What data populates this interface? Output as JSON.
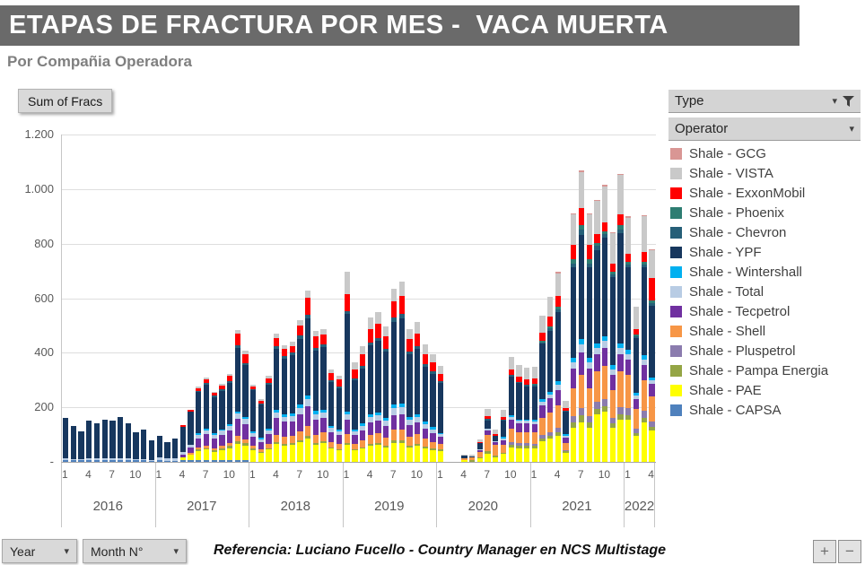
{
  "header": {
    "title": "ETAPAS DE FRACTURA POR MES -  VACA MUERTA",
    "subtitle": "Por Compañia Operadora"
  },
  "toolbar": {
    "sum_label": "Sum of Fracs"
  },
  "filters": {
    "type_label": "Type",
    "operator_label": "Operator"
  },
  "icons": {
    "caret": "▾"
  },
  "footer": {
    "year_label": "Year",
    "month_label": "Month N°",
    "reference": "Referencia: Luciano Fucello - Country Manager en NCS Multistage",
    "zoom_in": "+",
    "zoom_out": "−"
  },
  "chart_data": {
    "type": "bar",
    "stacked": true,
    "title": "Sum of Fracs per month by operator",
    "xlabel": "Year / Month N°",
    "ylabel": "Sum of Fracs",
    "ylim": [
      0,
      1200
    ],
    "ytick_step": 200,
    "ytick_labels": [
      "-",
      "200",
      "400",
      "600",
      "800",
      "1.000",
      "1.200"
    ],
    "grid": true,
    "legend_position": "right",
    "month_ticks": [
      1,
      4,
      7,
      10
    ],
    "year_groups": [
      {
        "label": "2016",
        "months": 12
      },
      {
        "label": "2017",
        "months": 12
      },
      {
        "label": "2018",
        "months": 12
      },
      {
        "label": "2019",
        "months": 12
      },
      {
        "label": "2020",
        "months": 12
      },
      {
        "label": "2021",
        "months": 12
      },
      {
        "label": "2022",
        "months": 4
      }
    ],
    "categories": [
      "2016-01",
      "2016-02",
      "2016-03",
      "2016-04",
      "2016-05",
      "2016-06",
      "2016-07",
      "2016-08",
      "2016-09",
      "2016-10",
      "2016-11",
      "2016-12",
      "2017-01",
      "2017-02",
      "2017-03",
      "2017-04",
      "2017-05",
      "2017-06",
      "2017-07",
      "2017-08",
      "2017-09",
      "2017-10",
      "2017-11",
      "2017-12",
      "2018-01",
      "2018-02",
      "2018-03",
      "2018-04",
      "2018-05",
      "2018-06",
      "2018-07",
      "2018-08",
      "2018-09",
      "2018-10",
      "2018-11",
      "2018-12",
      "2019-01",
      "2019-02",
      "2019-03",
      "2019-04",
      "2019-05",
      "2019-06",
      "2019-07",
      "2019-08",
      "2019-09",
      "2019-10",
      "2019-11",
      "2019-12",
      "2020-01",
      "2020-02",
      "2020-03",
      "2020-04",
      "2020-05",
      "2020-06",
      "2020-07",
      "2020-08",
      "2020-09",
      "2020-10",
      "2020-11",
      "2020-12",
      "2021-01",
      "2021-02",
      "2021-03",
      "2021-04",
      "2021-05",
      "2021-06",
      "2021-07",
      "2021-08",
      "2021-09",
      "2021-10",
      "2021-11",
      "2021-12",
      "2022-01",
      "2022-02",
      "2022-03",
      "2022-04"
    ],
    "series": [
      {
        "name": "Shale - CAPSA",
        "color": "#4f81bd",
        "values": [
          8,
          6,
          5,
          8,
          7,
          8,
          8,
          8,
          7,
          5,
          6,
          4,
          5,
          4,
          4,
          5,
          5,
          5,
          5,
          5,
          5,
          5,
          5,
          5,
          0,
          0,
          0,
          0,
          0,
          0,
          0,
          0,
          0,
          0,
          0,
          0,
          0,
          0,
          0,
          0,
          0,
          0,
          0,
          0,
          0,
          0,
          0,
          0,
          0,
          0,
          0,
          0,
          0,
          0,
          0,
          0,
          0,
          0,
          0,
          0,
          0,
          0,
          0,
          0,
          0,
          0,
          0,
          0,
          0,
          0,
          0,
          0,
          0,
          0,
          0,
          0
        ]
      },
      {
        "name": "Shale - PAE",
        "color": "#ffff00",
        "values": [
          0,
          0,
          0,
          0,
          0,
          0,
          0,
          0,
          0,
          0,
          0,
          0,
          0,
          0,
          0,
          12,
          22,
          35,
          40,
          32,
          38,
          45,
          62,
          55,
          42,
          32,
          45,
          65,
          58,
          62,
          72,
          85,
          62,
          68,
          48,
          42,
          62,
          42,
          48,
          58,
          62,
          52,
          68,
          68,
          52,
          58,
          48,
          42,
          40,
          0,
          0,
          6,
          0,
          12,
          28,
          16,
          28,
          52,
          48,
          48,
          48,
          75,
          85,
          95,
          32,
          125,
          145,
          125,
          175,
          185,
          125,
          155,
          155,
          95,
          145,
          115
        ]
      },
      {
        "name": "Shale - Pampa Energia",
        "color": "#94a545",
        "values": [
          0,
          0,
          0,
          0,
          0,
          0,
          0,
          0,
          0,
          0,
          0,
          0,
          0,
          0,
          0,
          0,
          0,
          5,
          5,
          5,
          5,
          8,
          10,
          8,
          6,
          5,
          6,
          8,
          8,
          8,
          8,
          10,
          8,
          8,
          6,
          5,
          8,
          5,
          6,
          8,
          8,
          8,
          10,
          10,
          8,
          8,
          8,
          6,
          6,
          0,
          0,
          0,
          5,
          6,
          12,
          6,
          6,
          12,
          10,
          10,
          10,
          12,
          12,
          15,
          6,
          20,
          25,
          20,
          20,
          20,
          16,
          20,
          16,
          10,
          16,
          12
        ]
      },
      {
        "name": "Shale - Pluspetrol",
        "color": "#8b7cae",
        "values": [
          0,
          0,
          0,
          0,
          0,
          0,
          0,
          0,
          0,
          0,
          0,
          0,
          0,
          0,
          0,
          0,
          0,
          0,
          0,
          0,
          0,
          0,
          0,
          0,
          0,
          0,
          0,
          0,
          0,
          0,
          0,
          0,
          0,
          0,
          0,
          0,
          0,
          0,
          0,
          0,
          0,
          0,
          0,
          0,
          0,
          0,
          0,
          0,
          0,
          0,
          0,
          0,
          0,
          0,
          0,
          0,
          0,
          10,
          10,
          10,
          8,
          12,
          12,
          16,
          6,
          22,
          26,
          22,
          26,
          26,
          20,
          26,
          26,
          16,
          26,
          20
        ]
      },
      {
        "name": "Shale - Shell",
        "color": "#f79646",
        "values": [
          0,
          0,
          0,
          0,
          0,
          0,
          0,
          0,
          0,
          0,
          0,
          0,
          0,
          0,
          0,
          0,
          5,
          8,
          10,
          8,
          10,
          12,
          18,
          15,
          12,
          10,
          15,
          26,
          25,
          26,
          32,
          38,
          30,
          32,
          20,
          20,
          32,
          20,
          26,
          32,
          36,
          30,
          42,
          42,
          32,
          36,
          30,
          26,
          20,
          0,
          0,
          6,
          10,
          18,
          60,
          40,
          30,
          48,
          42,
          42,
          42,
          62,
          72,
          82,
          26,
          102,
          122,
          102,
          112,
          122,
          102,
          132,
          122,
          72,
          112,
          92
        ]
      },
      {
        "name": "Shale - Tecpetrol",
        "color": "#7030a0",
        "values": [
          0,
          0,
          0,
          0,
          0,
          0,
          0,
          0,
          0,
          0,
          0,
          0,
          0,
          0,
          0,
          10,
          20,
          32,
          42,
          36,
          42,
          46,
          62,
          56,
          32,
          26,
          36,
          62,
          56,
          52,
          62,
          72,
          56,
          52,
          36,
          32,
          52,
          32,
          36,
          46,
          46,
          42,
          52,
          56,
          42,
          42,
          36,
          32,
          26,
          0,
          0,
          0,
          0,
          6,
          16,
          10,
          16,
          32,
          30,
          30,
          30,
          46,
          52,
          56,
          20,
          72,
          82,
          72,
          62,
          66,
          56,
          62,
          56,
          36,
          56,
          46
        ]
      },
      {
        "name": "Shale - Total",
        "color": "#b8cce4",
        "values": [
          6,
          4,
          4,
          6,
          6,
          6,
          6,
          6,
          6,
          5,
          5,
          4,
          10,
          8,
          9,
          10,
          10,
          14,
          14,
          14,
          14,
          15,
          20,
          18,
          14,
          10,
          14,
          20,
          18,
          20,
          24,
          24,
          20,
          20,
          15,
          14,
          20,
          14,
          15,
          20,
          20,
          20,
          24,
          24,
          20,
          20,
          15,
          14,
          10,
          0,
          0,
          0,
          0,
          5,
          6,
          5,
          6,
          10,
          10,
          10,
          10,
          14,
          15,
          20,
          6,
          24,
          30,
          24,
          24,
          24,
          20,
          24,
          20,
          14,
          20,
          15
        ]
      },
      {
        "name": "Shale - Wintershall",
        "color": "#00b0f0",
        "values": [
          0,
          0,
          0,
          0,
          0,
          0,
          0,
          0,
          0,
          0,
          0,
          0,
          0,
          0,
          0,
          0,
          0,
          5,
          5,
          5,
          5,
          6,
          8,
          6,
          5,
          5,
          5,
          10,
          10,
          10,
          12,
          15,
          10,
          10,
          6,
          5,
          10,
          6,
          10,
          10,
          10,
          10,
          15,
          15,
          10,
          10,
          10,
          10,
          5,
          0,
          0,
          0,
          0,
          0,
          0,
          0,
          5,
          6,
          6,
          6,
          6,
          10,
          10,
          12,
          5,
          16,
          20,
          16,
          16,
          16,
          15,
          16,
          15,
          10,
          15,
          10
        ]
      },
      {
        "name": "Shale - YPF",
        "color": "#17375e",
        "values": [
          148,
          122,
          102,
          138,
          128,
          142,
          138,
          152,
          128,
          98,
          108,
          72,
          82,
          62,
          72,
          92,
          122,
          152,
          162,
          132,
          142,
          152,
          232,
          192,
          152,
          122,
          162,
          222,
          202,
          212,
          242,
          282,
          222,
          232,
          162,
          152,
          360,
          182,
          202,
          252,
          262,
          242,
          302,
          312,
          232,
          242,
          202,
          192,
          182,
          0,
          0,
          10,
          5,
          22,
          30,
          20,
          60,
          142,
          132,
          122,
          122,
          202,
          222,
          252,
          82,
          332,
          382,
          332,
          342,
          362,
          322,
          402,
          302,
          202,
          322,
          262
        ]
      },
      {
        "name": "Shale - Chevron",
        "color": "#265f78",
        "values": [
          0,
          0,
          0,
          0,
          0,
          0,
          0,
          0,
          0,
          0,
          0,
          0,
          0,
          0,
          0,
          0,
          0,
          5,
          5,
          5,
          5,
          6,
          10,
          8,
          5,
          5,
          6,
          10,
          10,
          10,
          12,
          15,
          10,
          10,
          6,
          6,
          10,
          6,
          10,
          10,
          10,
          10,
          15,
          15,
          10,
          10,
          10,
          10,
          6,
          0,
          0,
          0,
          0,
          0,
          5,
          0,
          5,
          6,
          6,
          6,
          6,
          6,
          10,
          10,
          5,
          15,
          20,
          15,
          15,
          15,
          10,
          15,
          10,
          6,
          10,
          10
        ]
      },
      {
        "name": "Shale - Phoenix",
        "color": "#2e7d72",
        "values": [
          0,
          0,
          0,
          0,
          0,
          0,
          0,
          0,
          0,
          0,
          0,
          0,
          0,
          0,
          0,
          0,
          0,
          0,
          0,
          0,
          0,
          0,
          0,
          0,
          0,
          0,
          0,
          0,
          0,
          0,
          0,
          0,
          0,
          0,
          0,
          0,
          0,
          0,
          0,
          0,
          0,
          0,
          0,
          0,
          0,
          0,
          0,
          0,
          0,
          0,
          0,
          0,
          0,
          0,
          0,
          0,
          0,
          0,
          0,
          0,
          5,
          6,
          6,
          10,
          0,
          15,
          16,
          15,
          10,
          10,
          10,
          15,
          10,
          6,
          10,
          10
        ]
      },
      {
        "name": "Shale - ExxonMobil",
        "color": "#ff0000",
        "values": [
          0,
          0,
          0,
          0,
          0,
          0,
          0,
          0,
          0,
          0,
          0,
          0,
          0,
          0,
          0,
          6,
          6,
          10,
          15,
          10,
          15,
          20,
          42,
          32,
          10,
          10,
          16,
          32,
          26,
          26,
          36,
          62,
          42,
          36,
          26,
          26,
          62,
          32,
          42,
          52,
          52,
          46,
          62,
          66,
          46,
          46,
          36,
          32,
          26,
          0,
          0,
          0,
          0,
          5,
          10,
          5,
          10,
          20,
          20,
          20,
          20,
          30,
          36,
          42,
          10,
          52,
          62,
          52,
          32,
          32,
          30,
          42,
          32,
          20,
          36,
          82
        ]
      },
      {
        "name": "Shale - VISTA",
        "color": "#c9c9c9",
        "values": [
          0,
          0,
          0,
          0,
          0,
          0,
          0,
          0,
          0,
          0,
          0,
          0,
          0,
          0,
          0,
          0,
          0,
          5,
          5,
          5,
          5,
          8,
          15,
          12,
          6,
          6,
          10,
          16,
          15,
          15,
          20,
          26,
          20,
          20,
          15,
          15,
          80,
          26,
          30,
          42,
          42,
          36,
          46,
          52,
          36,
          42,
          36,
          30,
          30,
          0,
          0,
          5,
          5,
          10,
          26,
          16,
          26,
          46,
          42,
          42,
          42,
          62,
          72,
          82,
          26,
          112,
          132,
          112,
          122,
          132,
          112,
          142,
          132,
          82,
          132,
          102
        ]
      },
      {
        "name": "Shale - GCG",
        "color": "#d99694",
        "values": [
          0,
          0,
          0,
          0,
          0,
          0,
          0,
          0,
          0,
          0,
          0,
          0,
          0,
          0,
          0,
          0,
          0,
          0,
          0,
          0,
          0,
          0,
          0,
          0,
          0,
          0,
          0,
          0,
          0,
          0,
          0,
          0,
          0,
          0,
          0,
          0,
          0,
          0,
          0,
          0,
          0,
          0,
          0,
          0,
          0,
          0,
          0,
          0,
          0,
          0,
          0,
          0,
          0,
          0,
          0,
          0,
          0,
          0,
          0,
          0,
          0,
          0,
          0,
          5,
          0,
          5,
          6,
          5,
          5,
          5,
          5,
          6,
          5,
          0,
          5,
          5
        ]
      }
    ]
  }
}
